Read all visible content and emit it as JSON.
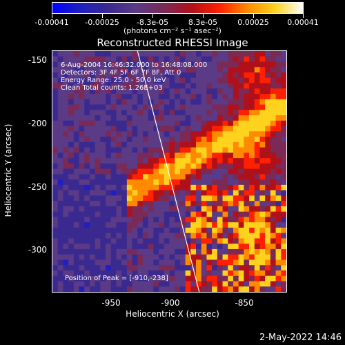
{
  "colorbar": {
    "ticks": [
      "-0.00041",
      "-0.00025",
      "-8.3e-05",
      "8.3e-05",
      "0.00025",
      "0.00041"
    ],
    "units": "(photons cm⁻² s⁻¹ asec⁻²)",
    "gradient_colors": [
      "#0000ff",
      "#2020c0",
      "#3a2a90",
      "#5b3a86",
      "#7a2a55",
      "#b0101a",
      "#ff2000",
      "#ff8a00",
      "#ffd21e",
      "#ffffff"
    ]
  },
  "title": "Reconstructed RHESSI Image",
  "annotations": {
    "time": "6-Aug-2004 16:46:32.000 to 16:48:08.000",
    "detectors": "Detectors: 3F 4F 5F 6F 7F 8F, Att 0",
    "energy": "Energy Range: 25.0 - 50.0 keV",
    "clean": "Clean     Total counts: 1.26E+03",
    "peak": "Position of Peak = [-910,-238]"
  },
  "axes": {
    "xlabel": "Heliocentric X (arcsec)",
    "ylabel": "Heliocentric Y (arcsec)",
    "xticks": [
      "-950",
      "-900",
      "-850"
    ],
    "yticks": [
      "-150",
      "-200",
      "-250",
      "-300"
    ]
  },
  "timestamp": "2-May-2022 14:46",
  "chart_data": {
    "type": "heatmap",
    "title": "Reconstructed RHESSI Image",
    "xlabel": "Heliocentric X (arcsec)",
    "ylabel": "Heliocentric Y (arcsec)",
    "xlim": [
      -998,
      -813
    ],
    "ylim": [
      -333,
      -140
    ],
    "color_range": [
      -0.00041,
      0.00041
    ],
    "peak": [
      -910,
      -238
    ]
  }
}
